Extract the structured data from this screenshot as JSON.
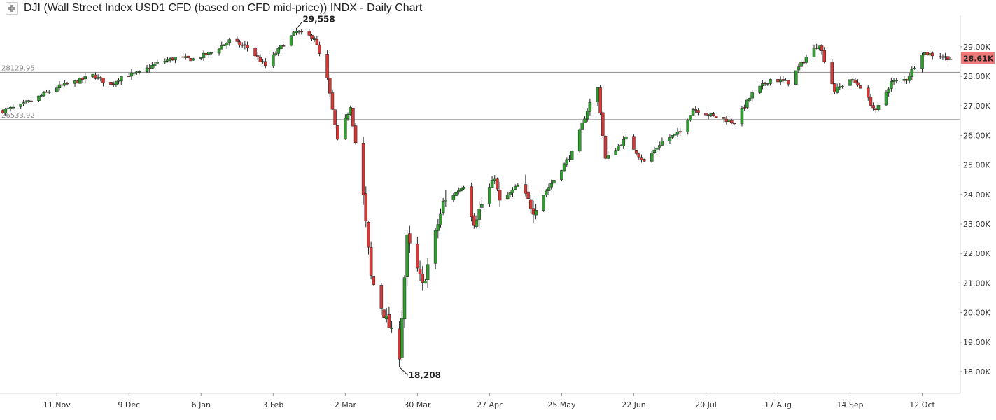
{
  "header": {
    "title": "DJI (Wall Street Index USD1 CFD (based on CFD mid-price)) INDX - Daily Chart",
    "collapse_icon": "collapse-arrows-icon"
  },
  "colors": {
    "up": "#2f9e2f",
    "down": "#d93636",
    "wick": "#222222",
    "hline": "#9a9a9a",
    "price_tag": "#f07878"
  },
  "chart_data": {
    "type": "candlestick",
    "title": "DJI (Wall Street Index USD1 CFD (based on CFD mid-price)) INDX - Daily Chart",
    "ylim": [
      17600,
      29900
    ],
    "y_ticks": [
      {
        "value": 18000,
        "label": "18.00K"
      },
      {
        "value": 19000,
        "label": "19.00K"
      },
      {
        "value": 20000,
        "label": "20.00K"
      },
      {
        "value": 21000,
        "label": "21.00K"
      },
      {
        "value": 22000,
        "label": "22.00K"
      },
      {
        "value": 23000,
        "label": "23.00K"
      },
      {
        "value": 24000,
        "label": "24.00K"
      },
      {
        "value": 25000,
        "label": "25.00K"
      },
      {
        "value": 26000,
        "label": "26.00K"
      },
      {
        "value": 27000,
        "label": "27.00K"
      },
      {
        "value": 28000,
        "label": "28.00K"
      },
      {
        "value": 29000,
        "label": "29.00K"
      }
    ],
    "x_ticks": [
      {
        "date": "2019-11-11",
        "label": "11 Nov"
      },
      {
        "date": "2019-12-09",
        "label": "9 Dec"
      },
      {
        "date": "2020-01-06",
        "label": "6 Jan"
      },
      {
        "date": "2020-02-03",
        "label": "3 Feb"
      },
      {
        "date": "2020-03-02",
        "label": "2 Mar"
      },
      {
        "date": "2020-03-30",
        "label": "30 Mar"
      },
      {
        "date": "2020-04-27",
        "label": "27 Apr"
      },
      {
        "date": "2020-05-25",
        "label": "25 May"
      },
      {
        "date": "2020-06-22",
        "label": "22 Jun"
      },
      {
        "date": "2020-07-20",
        "label": "20 Jul"
      },
      {
        "date": "2020-08-17",
        "label": "17 Aug"
      },
      {
        "date": "2020-09-14",
        "label": "14 Sep"
      },
      {
        "date": "2020-10-12",
        "label": "12 Oct"
      }
    ],
    "start_date": "2019-10-21",
    "end_date": "2020-10-23",
    "horizontal_lines": [
      {
        "value": 28129.95,
        "label": "28129.95"
      },
      {
        "value": 26533.92,
        "label": "26533.92"
      }
    ],
    "annotations": [
      {
        "text": "29,558",
        "value": 29558,
        "date": "2020-02-12",
        "position": "above"
      },
      {
        "text": "18,208",
        "value": 18208,
        "date": "2020-03-23",
        "position": "below"
      }
    ],
    "last_price": {
      "value": 28610,
      "label": "28.61K"
    },
    "close_anchors": [
      [
        "2019-10-21",
        26830
      ],
      [
        "2019-10-28",
        27000
      ],
      [
        "2019-11-04",
        27300
      ],
      [
        "2019-11-11",
        27630
      ],
      [
        "2019-11-18",
        27800
      ],
      [
        "2019-11-25",
        28030
      ],
      [
        "2019-12-02",
        27700
      ],
      [
        "2019-12-06",
        28000
      ],
      [
        "2019-12-13",
        28100
      ],
      [
        "2019-12-20",
        28450
      ],
      [
        "2019-12-27",
        28620
      ],
      [
        "2020-01-03",
        28580
      ],
      [
        "2020-01-10",
        28800
      ],
      [
        "2020-01-17",
        29200
      ],
      [
        "2020-01-24",
        28980
      ],
      [
        "2020-01-31",
        28350
      ],
      [
        "2020-02-07",
        29100
      ],
      [
        "2020-02-12",
        29510
      ],
      [
        "2020-02-19",
        29300
      ],
      [
        "2020-02-24",
        27900
      ],
      [
        "2020-02-28",
        25800
      ],
      [
        "2020-03-04",
        27000
      ],
      [
        "2020-03-09",
        23900
      ],
      [
        "2020-03-12",
        21200
      ],
      [
        "2020-03-16",
        20200
      ],
      [
        "2020-03-20",
        19300
      ],
      [
        "2020-03-23",
        18600
      ],
      [
        "2020-03-26",
        22500
      ],
      [
        "2020-04-01",
        20900
      ],
      [
        "2020-04-09",
        23700
      ],
      [
        "2020-04-17",
        24300
      ],
      [
        "2020-04-21",
        23100
      ],
      [
        "2020-04-29",
        24600
      ],
      [
        "2020-05-01",
        23700
      ],
      [
        "2020-05-08",
        24300
      ],
      [
        "2020-05-14",
        23500
      ],
      [
        "2020-05-22",
        24500
      ],
      [
        "2020-05-29",
        25400
      ],
      [
        "2020-06-05",
        27100
      ],
      [
        "2020-06-08",
        27600
      ],
      [
        "2020-06-11",
        25200
      ],
      [
        "2020-06-19",
        25900
      ],
      [
        "2020-06-26",
        25100
      ],
      [
        "2020-07-03",
        25800
      ],
      [
        "2020-07-10",
        26100
      ],
      [
        "2020-07-15",
        26900
      ],
      [
        "2020-07-23",
        26650
      ],
      [
        "2020-07-31",
        26450
      ],
      [
        "2020-08-07",
        27400
      ],
      [
        "2020-08-14",
        27900
      ],
      [
        "2020-08-21",
        27800
      ],
      [
        "2020-08-28",
        28650
      ],
      [
        "2020-09-02",
        29100
      ],
      [
        "2020-09-08",
        27500
      ],
      [
        "2020-09-14",
        27900
      ],
      [
        "2020-09-18",
        27650
      ],
      [
        "2020-09-24",
        26800
      ],
      [
        "2020-09-30",
        27800
      ],
      [
        "2020-10-06",
        27900
      ],
      [
        "2020-10-12",
        28800
      ],
      [
        "2020-10-23",
        28610
      ]
    ]
  }
}
